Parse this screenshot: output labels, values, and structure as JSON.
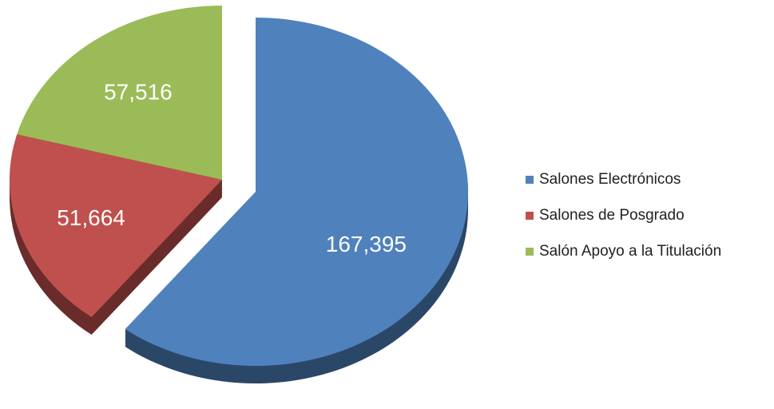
{
  "chart_data": {
    "type": "pie",
    "categories": [
      "Salones Electrónicos",
      "Salones de Posgrado",
      "Salón Apoyo a la Titulación"
    ],
    "values": [
      167395,
      51664,
      57516
    ],
    "value_labels": [
      "167,395",
      "51,664",
      "57,516"
    ],
    "colors": [
      "#4f81bd",
      "#c0504d",
      "#9bbb59"
    ],
    "legend": "right"
  }
}
